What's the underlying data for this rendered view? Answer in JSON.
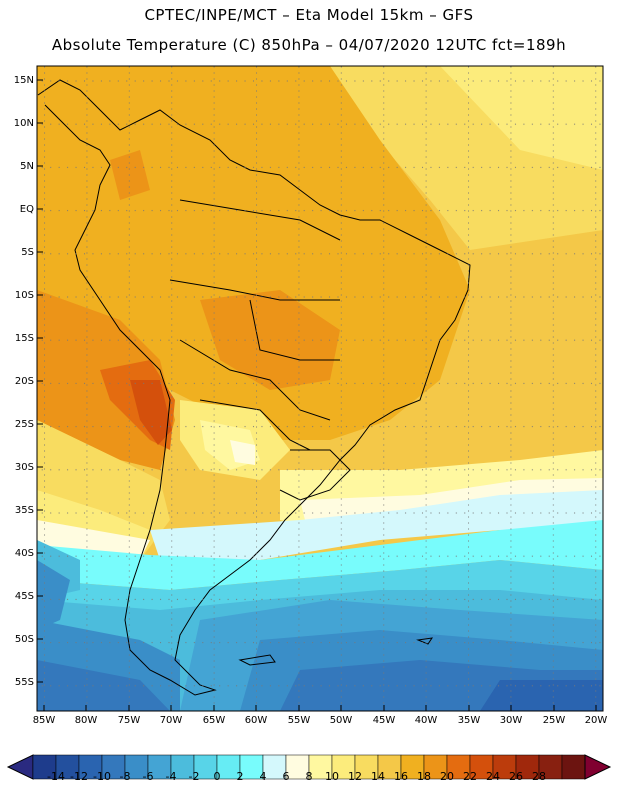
{
  "header": {
    "line1": "CPTEC/INPE/MCT –  Eta Model 15km – GFS",
    "line2": "Absolute Temperature (C) 850hPa – 04/07/2020 12UTC fct=189h"
  },
  "axes": {
    "lat_labels": [
      "15N",
      "10N",
      "5N",
      "EQ",
      "5S",
      "10S",
      "15S",
      "20S",
      "25S",
      "30S",
      "35S",
      "40S",
      "45S",
      "50S",
      "55S"
    ],
    "lon_labels": [
      "85W",
      "80W",
      "75W",
      "70W",
      "65W",
      "60W",
      "55W",
      "50W",
      "45W",
      "40W",
      "35W",
      "30W",
      "25W",
      "20W"
    ]
  },
  "colorbar": {
    "labels": [
      "-14",
      "-12",
      "-10",
      "-8",
      "-6",
      "-4",
      "-2",
      "0",
      "2",
      "4",
      "6",
      "8",
      "10",
      "12",
      "14",
      "16",
      "18",
      "20",
      "22",
      "24",
      "26",
      "28"
    ],
    "colors": [
      "#1e3c8c",
      "#23509e",
      "#2a64b0",
      "#3478bc",
      "#3a8ec8",
      "#44a4d4",
      "#4cbcdc",
      "#58d4e8",
      "#66ecf4",
      "#78fcfc",
      "#d4f8fc",
      "#fffce0",
      "#fff8a0",
      "#fcec7c",
      "#f8dc60",
      "#f4c848",
      "#f0b020",
      "#ec9418",
      "#e46c10",
      "#d4500c",
      "#bc3c0c",
      "#a0280c",
      "#882010",
      "#6c1410"
    ],
    "under_color": "#2a2a80",
    "over_color": "#800030"
  }
}
